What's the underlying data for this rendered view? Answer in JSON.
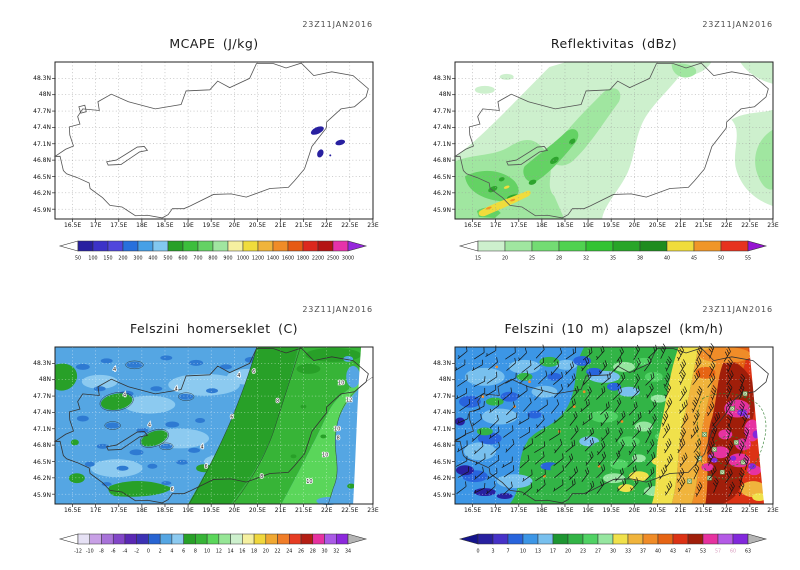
{
  "page": {
    "background": "#ffffff"
  },
  "chart_data": [
    {
      "type": "heatmap",
      "panel": "top-left",
      "title": "MCAPE (J/kg)",
      "timestamp": "23Z11JAN2016",
      "region": "Hungary",
      "x_ticks": [
        "16.5E",
        "17E",
        "17.5E",
        "18E",
        "18.5E",
        "19E",
        "19.5E",
        "20E",
        "20.5E",
        "21E",
        "21.5E",
        "22E",
        "22.5E",
        "23E"
      ],
      "y_ticks": [
        "48.3N",
        "48N",
        "47.7N",
        "47.4N",
        "47.1N",
        "46.8N",
        "46.5N",
        "46.2N",
        "45.9N"
      ],
      "levels": [
        50,
        100,
        150,
        200,
        300,
        400,
        500,
        600,
        700,
        800,
        900,
        1000,
        1200,
        1400,
        1600,
        1800,
        2200,
        2500,
        3000
      ],
      "palette": [
        "#2820a0",
        "#3c32c8",
        "#5046dc",
        "#2870dc",
        "#46a0e6",
        "#82c8f0",
        "#28a028",
        "#3cbe3c",
        "#64d264",
        "#a0e6a0",
        "#f5f0a0",
        "#f0dc3c",
        "#f0b43c",
        "#f08c28",
        "#e65a14",
        "#dc281e",
        "#b41414",
        "#e632aa"
      ],
      "below_min_color": "#ffffff",
      "above_max_color": "#9628dc",
      "contour_labels": [],
      "field_description": "Almost everywhere below 50 J/kg (white); a few small 50-200 J/kg patches near 21.8-22.3E, 46.9-47.4N."
    },
    {
      "type": "heatmap",
      "panel": "top-right",
      "title": "Reflektivitas (dBz)",
      "timestamp": "23Z11JAN2016",
      "region": "Hungary",
      "x_ticks": [
        "16.5E",
        "17E",
        "17.5E",
        "18E",
        "18.5E",
        "19E",
        "19.5E",
        "20E",
        "20.5E",
        "21E",
        "21.5E",
        "22E",
        "22.5E",
        "23E"
      ],
      "y_ticks": [
        "48.3N",
        "48N",
        "47.7N",
        "47.4N",
        "47.1N",
        "46.8N",
        "46.5N",
        "46.2N",
        "45.9N"
      ],
      "levels": [
        15,
        20,
        25,
        28,
        32,
        35,
        38,
        40,
        45,
        50,
        55
      ],
      "palette": [
        "#cdf0cd",
        "#a0e6a0",
        "#73dc73",
        "#50d250",
        "#32c332",
        "#28a528",
        "#1e8c1e",
        "#f0dc3c",
        "#f09628",
        "#e6321e"
      ],
      "below_min_color": "#ffffff",
      "above_max_color": "#9614d2",
      "contour_labels": [],
      "field_description": "15-38 dBz band oriented SW-NE across Transdanubia and central Hungary; strongest cells 40-50 dBz near 16.8-17.6E, 45.9-46.3N."
    },
    {
      "type": "heatmap",
      "panel": "bottom-left",
      "title": "Felszini homerseklet (C)",
      "timestamp": "23Z11JAN2016",
      "region": "Hungary",
      "x_ticks": [
        "16.5E",
        "17E",
        "17.5E",
        "18E",
        "18.5E",
        "19E",
        "19.5E",
        "20E",
        "20.5E",
        "21E",
        "21.5E",
        "22E",
        "22.5E",
        "23E"
      ],
      "y_ticks": [
        "48.3N",
        "48N",
        "47.7N",
        "47.4N",
        "47.1N",
        "46.8N",
        "46.5N",
        "46.2N",
        "45.9N"
      ],
      "levels": [
        -12,
        -10,
        -8,
        -6,
        -4,
        -2,
        0,
        2,
        4,
        6,
        8,
        10,
        12,
        14,
        16,
        18,
        20,
        22,
        24,
        26,
        28,
        30,
        32,
        34
      ],
      "palette": [
        "#e6e1f5",
        "#c8a0e6",
        "#a873d9",
        "#8246c8",
        "#5a28b4",
        "#3c32b4",
        "#2864d2",
        "#55a6e3",
        "#8ccaf0",
        "#28a028",
        "#37b437",
        "#5ad65a",
        "#96e696",
        "#cdf0cd",
        "#f5f0a0",
        "#f0d73c",
        "#f0a832",
        "#f07d28",
        "#e63c23",
        "#b41e14",
        "#e632a0",
        "#aa5ae6",
        "#8c28dc"
      ],
      "below_min_color": "#ffffff",
      "above_max_color": "#b4b4b4",
      "contour_labels": [
        {
          "t": "4",
          "x": 70,
          "y": 50
        },
        {
          "t": "4",
          "x": 122,
          "y": 44
        },
        {
          "t": "4",
          "x": 95,
          "y": 80
        },
        {
          "t": "4",
          "x": 148,
          "y": 102
        },
        {
          "t": "4",
          "x": 60,
          "y": 24
        },
        {
          "t": "4",
          "x": 185,
          "y": 30
        },
        {
          "t": "6",
          "x": 200,
          "y": 26
        },
        {
          "t": "6",
          "x": 178,
          "y": 72
        },
        {
          "t": "6",
          "x": 152,
          "y": 122
        },
        {
          "t": "6",
          "x": 118,
          "y": 145
        },
        {
          "t": "8",
          "x": 224,
          "y": 56
        },
        {
          "t": "8",
          "x": 285,
          "y": 93
        },
        {
          "t": "8",
          "x": 208,
          "y": 132
        },
        {
          "t": "10",
          "x": 288,
          "y": 38
        },
        {
          "t": "10",
          "x": 284,
          "y": 84
        },
        {
          "t": "10",
          "x": 272,
          "y": 110
        },
        {
          "t": "10",
          "x": 256,
          "y": 137
        },
        {
          "t": "12",
          "x": 296,
          "y": 55
        }
      ],
      "field_description": "Surface temps mostly 2-6 C (blue) over the west and centre with 0-2 C pockets and scattered 6-8 C spots; 6-10 C (green) in the east, 10-12 C in the far east."
    },
    {
      "type": "heatmap",
      "panel": "bottom-right",
      "title": "Felszini (10 m) alapszel (km/h)",
      "timestamp": "23Z11JAN2016",
      "region": "Hungary",
      "x_ticks": [
        "16.5E",
        "17E",
        "17.5E",
        "18E",
        "18.5E",
        "19E",
        "19.5E",
        "20E",
        "20.5E",
        "21E",
        "21.5E",
        "22E",
        "22.5E",
        "23E"
      ],
      "y_ticks": [
        "48.3N",
        "48N",
        "47.7N",
        "47.4N",
        "47.1N",
        "46.8N",
        "46.5N",
        "46.2N",
        "45.9N"
      ],
      "levels": [
        0,
        3,
        7,
        10,
        13,
        17,
        20,
        23,
        27,
        30,
        33,
        37,
        40,
        43,
        47,
        53,
        57,
        60,
        63
      ],
      "palette": [
        "#2820a0",
        "#4632c8",
        "#2864dc",
        "#3c96e6",
        "#78c0ee",
        "#1e9632",
        "#32b446",
        "#50d264",
        "#96e6a0",
        "#f0e14b",
        "#f0b43c",
        "#f08c28",
        "#e66414",
        "#dc3214",
        "#a01e0a",
        "#e632a0",
        "#b45ae6",
        "#8228dc"
      ],
      "below_min_color": "#14148c",
      "above_max_color": "#b4b4b4",
      "muted_labels": [
        "57",
        "60"
      ],
      "wind_barbs": true,
      "station_markers": [
        [
          292,
          47
        ],
        [
          279,
          62
        ],
        [
          251,
          88
        ],
        [
          261,
          103
        ],
        [
          283,
          96
        ],
        [
          246,
          112
        ],
        [
          269,
          126
        ],
        [
          290,
          116
        ],
        [
          236,
          135
        ],
        [
          256,
          132
        ]
      ],
      "contour_labels": [],
      "field_description": "Light winds 7-17 km/h (blue) in the west, 17-30 km/h (green) centrally, sharply increasing east of ~20.5E to 40-53 km/h (orange/red) with 53-63 km/h cores (magenta/purple) near 21.3-22.6E."
    }
  ]
}
